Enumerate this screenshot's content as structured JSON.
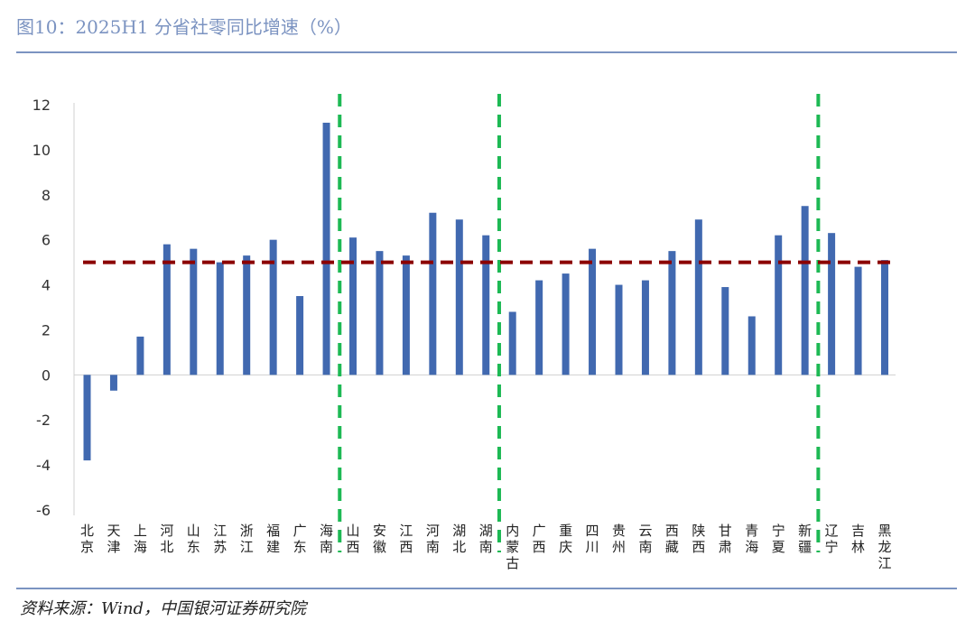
{
  "title": "图10：2025H1 分省社零同比增速（%）",
  "source": "资料来源：Wind，中国银河证券研究院",
  "colors": {
    "bar": "#4169b0",
    "reference_line": "#8b0000",
    "divider": "#1db954",
    "rule": "#7b93c1"
  },
  "chart_data": {
    "type": "bar",
    "categories": [
      "北京",
      "天津",
      "上海",
      "河北",
      "山东",
      "江苏",
      "浙江",
      "福建",
      "广东",
      "海南",
      "山西",
      "安徽",
      "江西",
      "河南",
      "湖北",
      "湖南",
      "内蒙古",
      "广西",
      "重庆",
      "四川",
      "贵州",
      "云南",
      "西藏",
      "陕西",
      "甘肃",
      "青海",
      "宁夏",
      "新疆",
      "辽宁",
      "吉林",
      "黑龙江"
    ],
    "values": [
      -3.8,
      -0.7,
      1.7,
      5.8,
      5.6,
      5.0,
      5.3,
      6.0,
      3.5,
      11.2,
      6.1,
      5.5,
      5.3,
      7.2,
      6.9,
      6.2,
      2.8,
      4.2,
      4.5,
      5.6,
      4.0,
      4.2,
      5.5,
      6.9,
      3.9,
      2.6,
      6.2,
      7.5,
      6.3,
      4.8,
      5.1
    ],
    "ylim": [
      -6,
      12
    ],
    "yticks": [
      12,
      10,
      8,
      6,
      4,
      2,
      0,
      -2,
      -4,
      -6
    ],
    "reference_line_y": 5,
    "group_dividers_after": [
      "海南",
      "湖南",
      "新疆"
    ]
  }
}
